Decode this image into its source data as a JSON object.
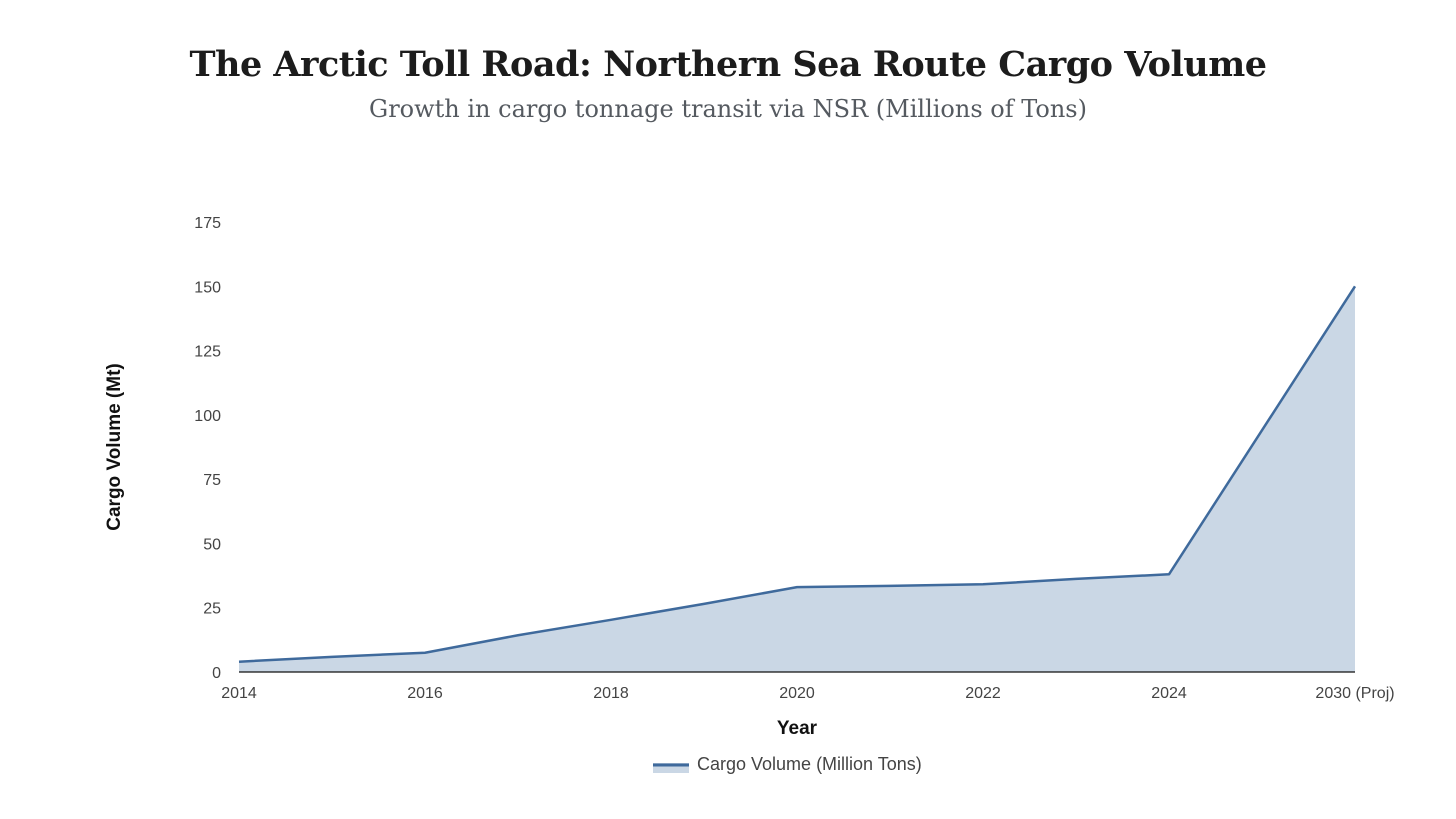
{
  "chart_data": {
    "type": "area",
    "title": "The Arctic Toll Road: Northern Sea Route Cargo Volume",
    "subtitle": "Growth in cargo tonnage transit via NSR (Millions of Tons)",
    "xlabel": "Year",
    "ylabel": "Cargo Volume (Mt)",
    "categories": [
      "2014",
      "2016",
      "2018",
      "2020",
      "2022",
      "2024",
      "2030 (Proj)"
    ],
    "yticks": [
      0,
      25,
      50,
      75,
      100,
      125,
      150,
      175
    ],
    "ylim": [
      0,
      175
    ],
    "grid": false,
    "legend_position": "bottom-center",
    "series": [
      {
        "name": "Cargo Volume (Million Tons)",
        "x": [
          2014,
          2015,
          2016,
          2017,
          2018,
          2019,
          2020,
          2021,
          2022,
          2023,
          2024,
          2030
        ],
        "values": [
          4.0,
          5.9,
          7.5,
          14.3,
          20.3,
          26.5,
          33.0,
          33.5,
          34.1,
          36.2,
          38.0,
          150.0
        ],
        "color": "#3f6a9c",
        "fill": "#cad7e5"
      }
    ]
  }
}
